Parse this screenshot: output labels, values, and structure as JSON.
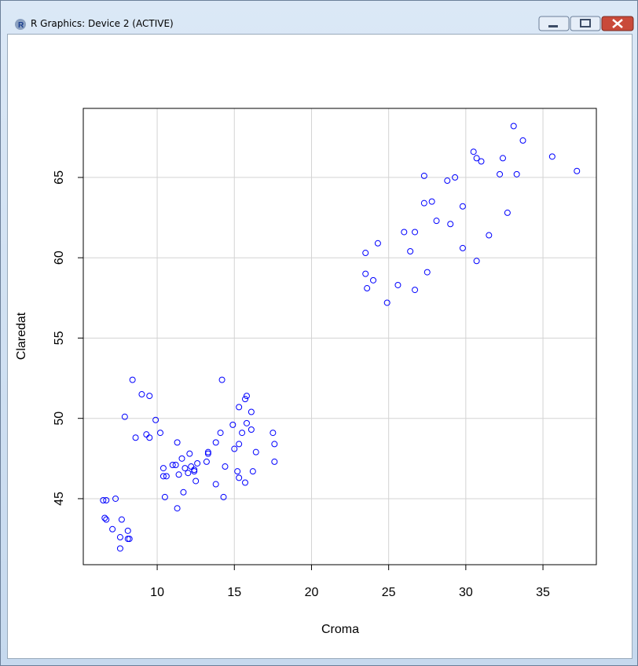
{
  "window": {
    "title": "R Graphics: Device 2 (ACTIVE)"
  },
  "chart_data": {
    "type": "scatter",
    "xlabel": "Croma",
    "ylabel": "Claredat",
    "color": "#0000ff",
    "grid": true,
    "xlim": [
      5.21,
      38.46
    ],
    "ylim": [
      40.89,
      69.3
    ],
    "xticks": [
      10,
      15,
      20,
      25,
      30,
      35
    ],
    "yticks": [
      45,
      50,
      55,
      60,
      65
    ],
    "x": [
      6.5,
      6.7,
      7.3,
      6.6,
      6.7,
      7.1,
      7.7,
      8.1,
      7.6,
      8.1,
      8.2,
      7.6,
      8.4,
      7.9,
      8.6,
      9.0,
      9.3,
      9.5,
      9.5,
      9.9,
      10.2,
      10.4,
      10.5,
      10.6,
      10.4,
      11.0,
      11.2,
      11.3,
      11.4,
      11.3,
      11.6,
      11.7,
      11.8,
      12.0,
      12.1,
      12.2,
      12.4,
      12.4,
      12.5,
      12.6,
      13.2,
      13.3,
      13.3,
      13.8,
      13.8,
      14.1,
      14.2,
      14.4,
      14.3,
      14.9,
      15.0,
      15.2,
      15.3,
      15.3,
      15.3,
      15.5,
      15.7,
      15.7,
      15.8,
      15.8,
      16.1,
      16.1,
      16.2,
      16.4,
      17.5,
      17.6,
      17.6,
      23.5,
      23.5,
      23.6,
      24.0,
      24.3,
      24.9,
      25.6,
      26.0,
      26.4,
      26.7,
      26.7,
      27.3,
      27.3,
      27.5,
      27.8,
      28.1,
      28.8,
      29.0,
      29.3,
      29.8,
      29.8,
      30.5,
      30.7,
      30.7,
      31.0,
      31.5,
      32.2,
      32.4,
      32.7,
      33.1,
      33.3,
      33.7,
      35.6,
      37.2
    ],
    "values": [
      44.9,
      44.9,
      45.0,
      43.8,
      43.7,
      43.1,
      43.7,
      43.0,
      42.6,
      42.5,
      42.5,
      41.9,
      52.4,
      50.1,
      48.8,
      51.5,
      49.0,
      48.8,
      51.4,
      49.9,
      49.1,
      46.9,
      45.1,
      46.4,
      46.4,
      47.1,
      47.1,
      48.5,
      46.5,
      44.4,
      47.5,
      45.4,
      46.9,
      46.6,
      47.8,
      47.0,
      46.8,
      46.7,
      46.1,
      47.2,
      47.3,
      47.8,
      47.9,
      48.5,
      45.9,
      49.1,
      52.4,
      47.0,
      45.1,
      49.6,
      48.1,
      46.7,
      46.3,
      50.7,
      48.4,
      49.1,
      46.0,
      51.2,
      51.4,
      49.7,
      49.3,
      50.4,
      46.7,
      47.9,
      49.1,
      48.4,
      47.3,
      60.3,
      59.0,
      58.1,
      58.6,
      60.9,
      57.2,
      58.3,
      61.6,
      60.4,
      61.6,
      58.0,
      65.1,
      63.4,
      59.1,
      63.5,
      62.3,
      64.8,
      62.1,
      65.0,
      63.2,
      60.6,
      66.6,
      66.2,
      59.8,
      66.0,
      61.4,
      65.2,
      66.2,
      62.8,
      68.2,
      65.2,
      67.3,
      66.3,
      65.4
    ]
  }
}
